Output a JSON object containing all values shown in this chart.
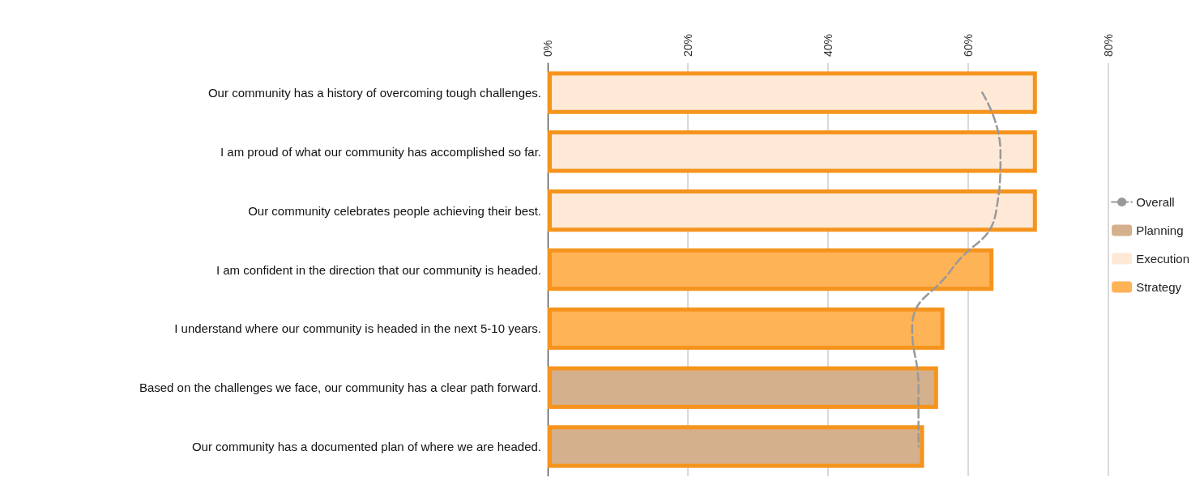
{
  "chart_data": {
    "type": "bar",
    "orientation": "horizontal",
    "stacked": true,
    "categories": [
      "Our community has a history of overcoming tough challenges.",
      "I am proud of what our community has accomplished so far.",
      "Our community celebrates people achieving their best.",
      "I am confident in the direction that our community is headed.",
      "I understand where our community is headed in the next 5-10 years.",
      "Based on the challenges we face, our community has a clear path forward.",
      "Our community has a documented plan of where we are headed."
    ],
    "series": [
      {
        "name": "Overall",
        "type": "line",
        "color": "#999999",
        "line_style": "dashed",
        "marker": "none",
        "values": [
          62.0,
          64.6,
          64.0,
          57.6,
          52.0,
          52.9,
          52.9
        ]
      },
      {
        "name": "Planning",
        "color": "#d4b08c",
        "values": [
          null,
          null,
          null,
          null,
          null,
          55.7,
          53.7
        ]
      },
      {
        "name": "Execution",
        "color": "#fde9d6",
        "values": [
          69.8,
          69.8,
          69.8,
          null,
          null,
          null,
          null
        ]
      },
      {
        "name": "Strategy",
        "color": "#ffb357",
        "values": [
          null,
          null,
          null,
          63.6,
          56.6,
          null,
          null
        ]
      }
    ],
    "xlim": [
      0,
      80
    ],
    "xticks": [
      {
        "value": 0,
        "label": "0%"
      },
      {
        "value": 20,
        "label": "20%"
      },
      {
        "value": 40,
        "label": "40%"
      },
      {
        "value": 60,
        "label": "60%"
      },
      {
        "value": 80,
        "label": "80%"
      }
    ],
    "grid": "x",
    "legend": "right"
  }
}
